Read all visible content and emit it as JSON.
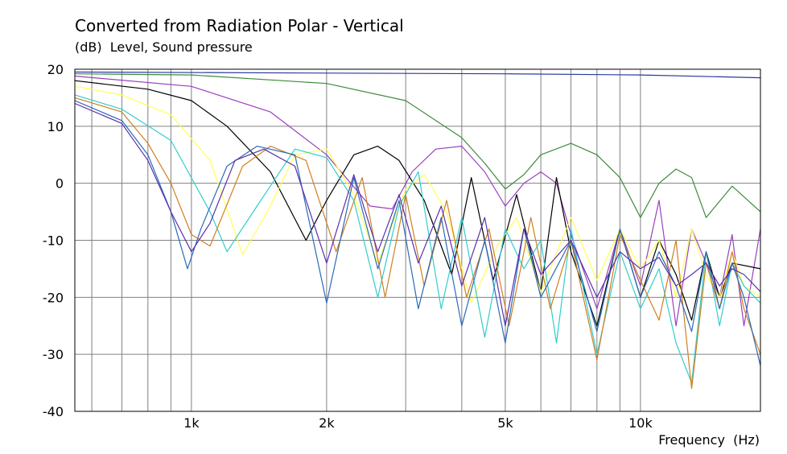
{
  "chart_data": {
    "type": "line",
    "title": "Converted from Radiation Polar - Vertical",
    "ylabel": "(dB)  Level, Sound pressure",
    "xlabel": "Frequency  (Hz)",
    "xscale": "log",
    "xlim": [
      550,
      18500
    ],
    "ylim": [
      -40,
      20
    ],
    "grid": true,
    "yticks": [
      20,
      10,
      0,
      -10,
      -20,
      -30,
      -40
    ],
    "xtick_labels": [
      {
        "value": 1000,
        "label": "1k"
      },
      {
        "value": 2000,
        "label": "2k"
      },
      {
        "value": 5000,
        "label": "5k"
      },
      {
        "value": 10000,
        "label": "10k"
      }
    ],
    "xgrid_values": [
      600,
      700,
      800,
      900,
      1000,
      2000,
      3000,
      4000,
      5000,
      6000,
      7000,
      8000,
      9000,
      10000
    ],
    "series": [
      {
        "color": "#2b3a9e",
        "x": [
          550,
          5000,
          10000,
          18500
        ],
        "y": [
          19.5,
          19.2,
          19.0,
          18.5
        ]
      },
      {
        "color": "#3c8c3c",
        "x": [
          550,
          1000,
          2000,
          3000,
          4000,
          4500,
          5000,
          5500,
          6000,
          7000,
          8000,
          9000,
          10000,
          11000,
          12000,
          13000,
          14000,
          16000,
          18500
        ],
        "y": [
          19.2,
          19.0,
          17.5,
          14.5,
          8.0,
          3.5,
          -1.0,
          1.5,
          5.0,
          7.0,
          5.0,
          1.0,
          -6.0,
          0.0,
          2.5,
          1.0,
          -6.0,
          -0.5,
          -5.0
        ]
      },
      {
        "color": "#9b3fbf",
        "x": [
          550,
          1000,
          1500,
          2000,
          2500,
          2800,
          3100,
          3500,
          4000,
          4500,
          5000,
          5500,
          6000,
          6500,
          7000,
          8000,
          9000,
          10000,
          11000,
          12000,
          13000,
          14000,
          15000,
          16000,
          17000,
          18500
        ],
        "y": [
          18.8,
          17.0,
          12.5,
          5.0,
          -4.0,
          -4.5,
          2.0,
          6.0,
          6.5,
          2.0,
          -4.0,
          0.0,
          2.0,
          0.0,
          -9.0,
          -22.0,
          -8.0,
          -18.0,
          -3.0,
          -25.0,
          -8.0,
          -14.0,
          -20.0,
          -9.0,
          -25.0,
          -8.0
        ]
      },
      {
        "color": "#000000",
        "x": [
          550,
          800,
          1000,
          1200,
          1500,
          1800,
          2000,
          2300,
          2600,
          2900,
          3300,
          3800,
          4200,
          4700,
          5300,
          6000,
          6500,
          7000,
          8000,
          9000,
          10000,
          11000,
          12000,
          13000,
          14000,
          15000,
          16000,
          18500
        ],
        "y": [
          18.0,
          16.5,
          14.5,
          10.0,
          2.0,
          -10.0,
          -3.0,
          5.0,
          6.5,
          4.0,
          -3.0,
          -16.0,
          1.0,
          -17.0,
          -2.0,
          -19.0,
          1.0,
          -12.0,
          -25.0,
          -8.0,
          -20.0,
          -10.0,
          -16.0,
          -24.0,
          -12.0,
          -20.0,
          -14.0,
          -15.0
        ]
      },
      {
        "color": "#ffff55",
        "x": [
          550,
          700,
          900,
          1100,
          1300,
          1500,
          1700,
          2000,
          2300,
          2600,
          3000,
          3300,
          3700,
          4200,
          4800,
          5300,
          6000,
          7000,
          8000,
          9000,
          10000,
          11000,
          12000,
          13000,
          14000,
          15000,
          16000,
          17000,
          18500
        ],
        "y": [
          17.0,
          15.5,
          12.0,
          4.0,
          -12.5,
          -4.0,
          5.0,
          6.0,
          -2.0,
          -14.0,
          -1.0,
          1.5,
          -5.0,
          -21.0,
          -11.0,
          -6.0,
          -19.0,
          -6.0,
          -17.0,
          -8.0,
          -15.0,
          -10.0,
          -20.0,
          -8.0,
          -16.0,
          -20.0,
          -12.0,
          -18.0,
          -20.0
        ]
      },
      {
        "color": "#33cccc",
        "x": [
          550,
          700,
          900,
          1100,
          1200,
          1400,
          1700,
          2000,
          2300,
          2600,
          2900,
          3200,
          3600,
          4000,
          4500,
          5000,
          5500,
          6000,
          6500,
          7000,
          8000,
          9000,
          10000,
          11000,
          12000,
          13000,
          14000,
          15000,
          16000,
          17000,
          18500
        ],
        "y": [
          15.5,
          13.0,
          7.5,
          -5.0,
          -12.0,
          -4.0,
          6.0,
          4.5,
          -3.0,
          -20.0,
          -4.0,
          2.0,
          -22.0,
          -6.0,
          -27.0,
          -8.0,
          -15.0,
          -10.0,
          -28.0,
          -8.0,
          -30.0,
          -12.0,
          -22.0,
          -15.0,
          -28.0,
          -35.0,
          -12.0,
          -25.0,
          -14.0,
          -18.0,
          -21.0
        ]
      },
      {
        "color": "#d07f20",
        "x": [
          550,
          700,
          800,
          900,
          1000,
          1100,
          1300,
          1500,
          1800,
          2100,
          2400,
          2700,
          3000,
          3300,
          3700,
          4100,
          4600,
          5100,
          5700,
          6300,
          7000,
          8000,
          9000,
          10000,
          11000,
          12000,
          13000,
          14000,
          15000,
          16000,
          17000,
          18500
        ],
        "y": [
          15.0,
          12.5,
          7.0,
          0.0,
          -9.0,
          -11.0,
          3.0,
          6.5,
          4.0,
          -12.0,
          1.0,
          -20.0,
          -2.0,
          -18.0,
          -3.0,
          -20.0,
          -8.0,
          -25.0,
          -6.0,
          -22.0,
          -10.0,
          -31.0,
          -9.0,
          -17.0,
          -24.0,
          -10.0,
          -36.0,
          -14.0,
          -22.0,
          -12.0,
          -22.0,
          -30.0
        ]
      },
      {
        "color": "#2a6ab8",
        "x": [
          550,
          700,
          800,
          900,
          980,
          1050,
          1200,
          1400,
          1700,
          2000,
          2300,
          2600,
          2900,
          3200,
          3600,
          4000,
          4500,
          5000,
          5500,
          6000,
          7000,
          8000,
          9000,
          10000,
          11000,
          12000,
          13000,
          14000,
          15000,
          16000,
          17000,
          18500
        ],
        "y": [
          14.5,
          11.0,
          5.0,
          -5.0,
          -15.0,
          -8.0,
          3.0,
          6.5,
          5.0,
          -21.0,
          1.0,
          -15.0,
          -3.0,
          -22.0,
          -6.0,
          -25.0,
          -10.0,
          -28.0,
          -8.0,
          -20.0,
          -10.0,
          -26.0,
          -8.0,
          -20.0,
          -12.0,
          -18.0,
          -26.0,
          -12.0,
          -22.0,
          -14.0,
          -20.0,
          -32.0
        ]
      },
      {
        "color": "#5a2fae",
        "x": [
          550,
          700,
          800,
          900,
          1000,
          1100,
          1250,
          1450,
          1700,
          2000,
          2300,
          2600,
          2900,
          3200,
          3600,
          4000,
          4500,
          5000,
          5500,
          6000,
          7000,
          8000,
          9000,
          10000,
          11000,
          12000,
          13000,
          14000,
          15000,
          16000,
          17000,
          18500
        ],
        "y": [
          14.0,
          10.5,
          4.0,
          -5.0,
          -12.0,
          -7.0,
          4.0,
          6.0,
          3.0,
          -14.0,
          1.5,
          -12.0,
          -2.0,
          -14.0,
          -4.0,
          -18.0,
          -6.0,
          -25.0,
          -8.0,
          -16.0,
          -10.0,
          -20.0,
          -12.0,
          -15.0,
          -13.0,
          -18.0,
          -16.0,
          -14.0,
          -18.0,
          -15.0,
          -16.0,
          -19.0
        ]
      }
    ]
  }
}
